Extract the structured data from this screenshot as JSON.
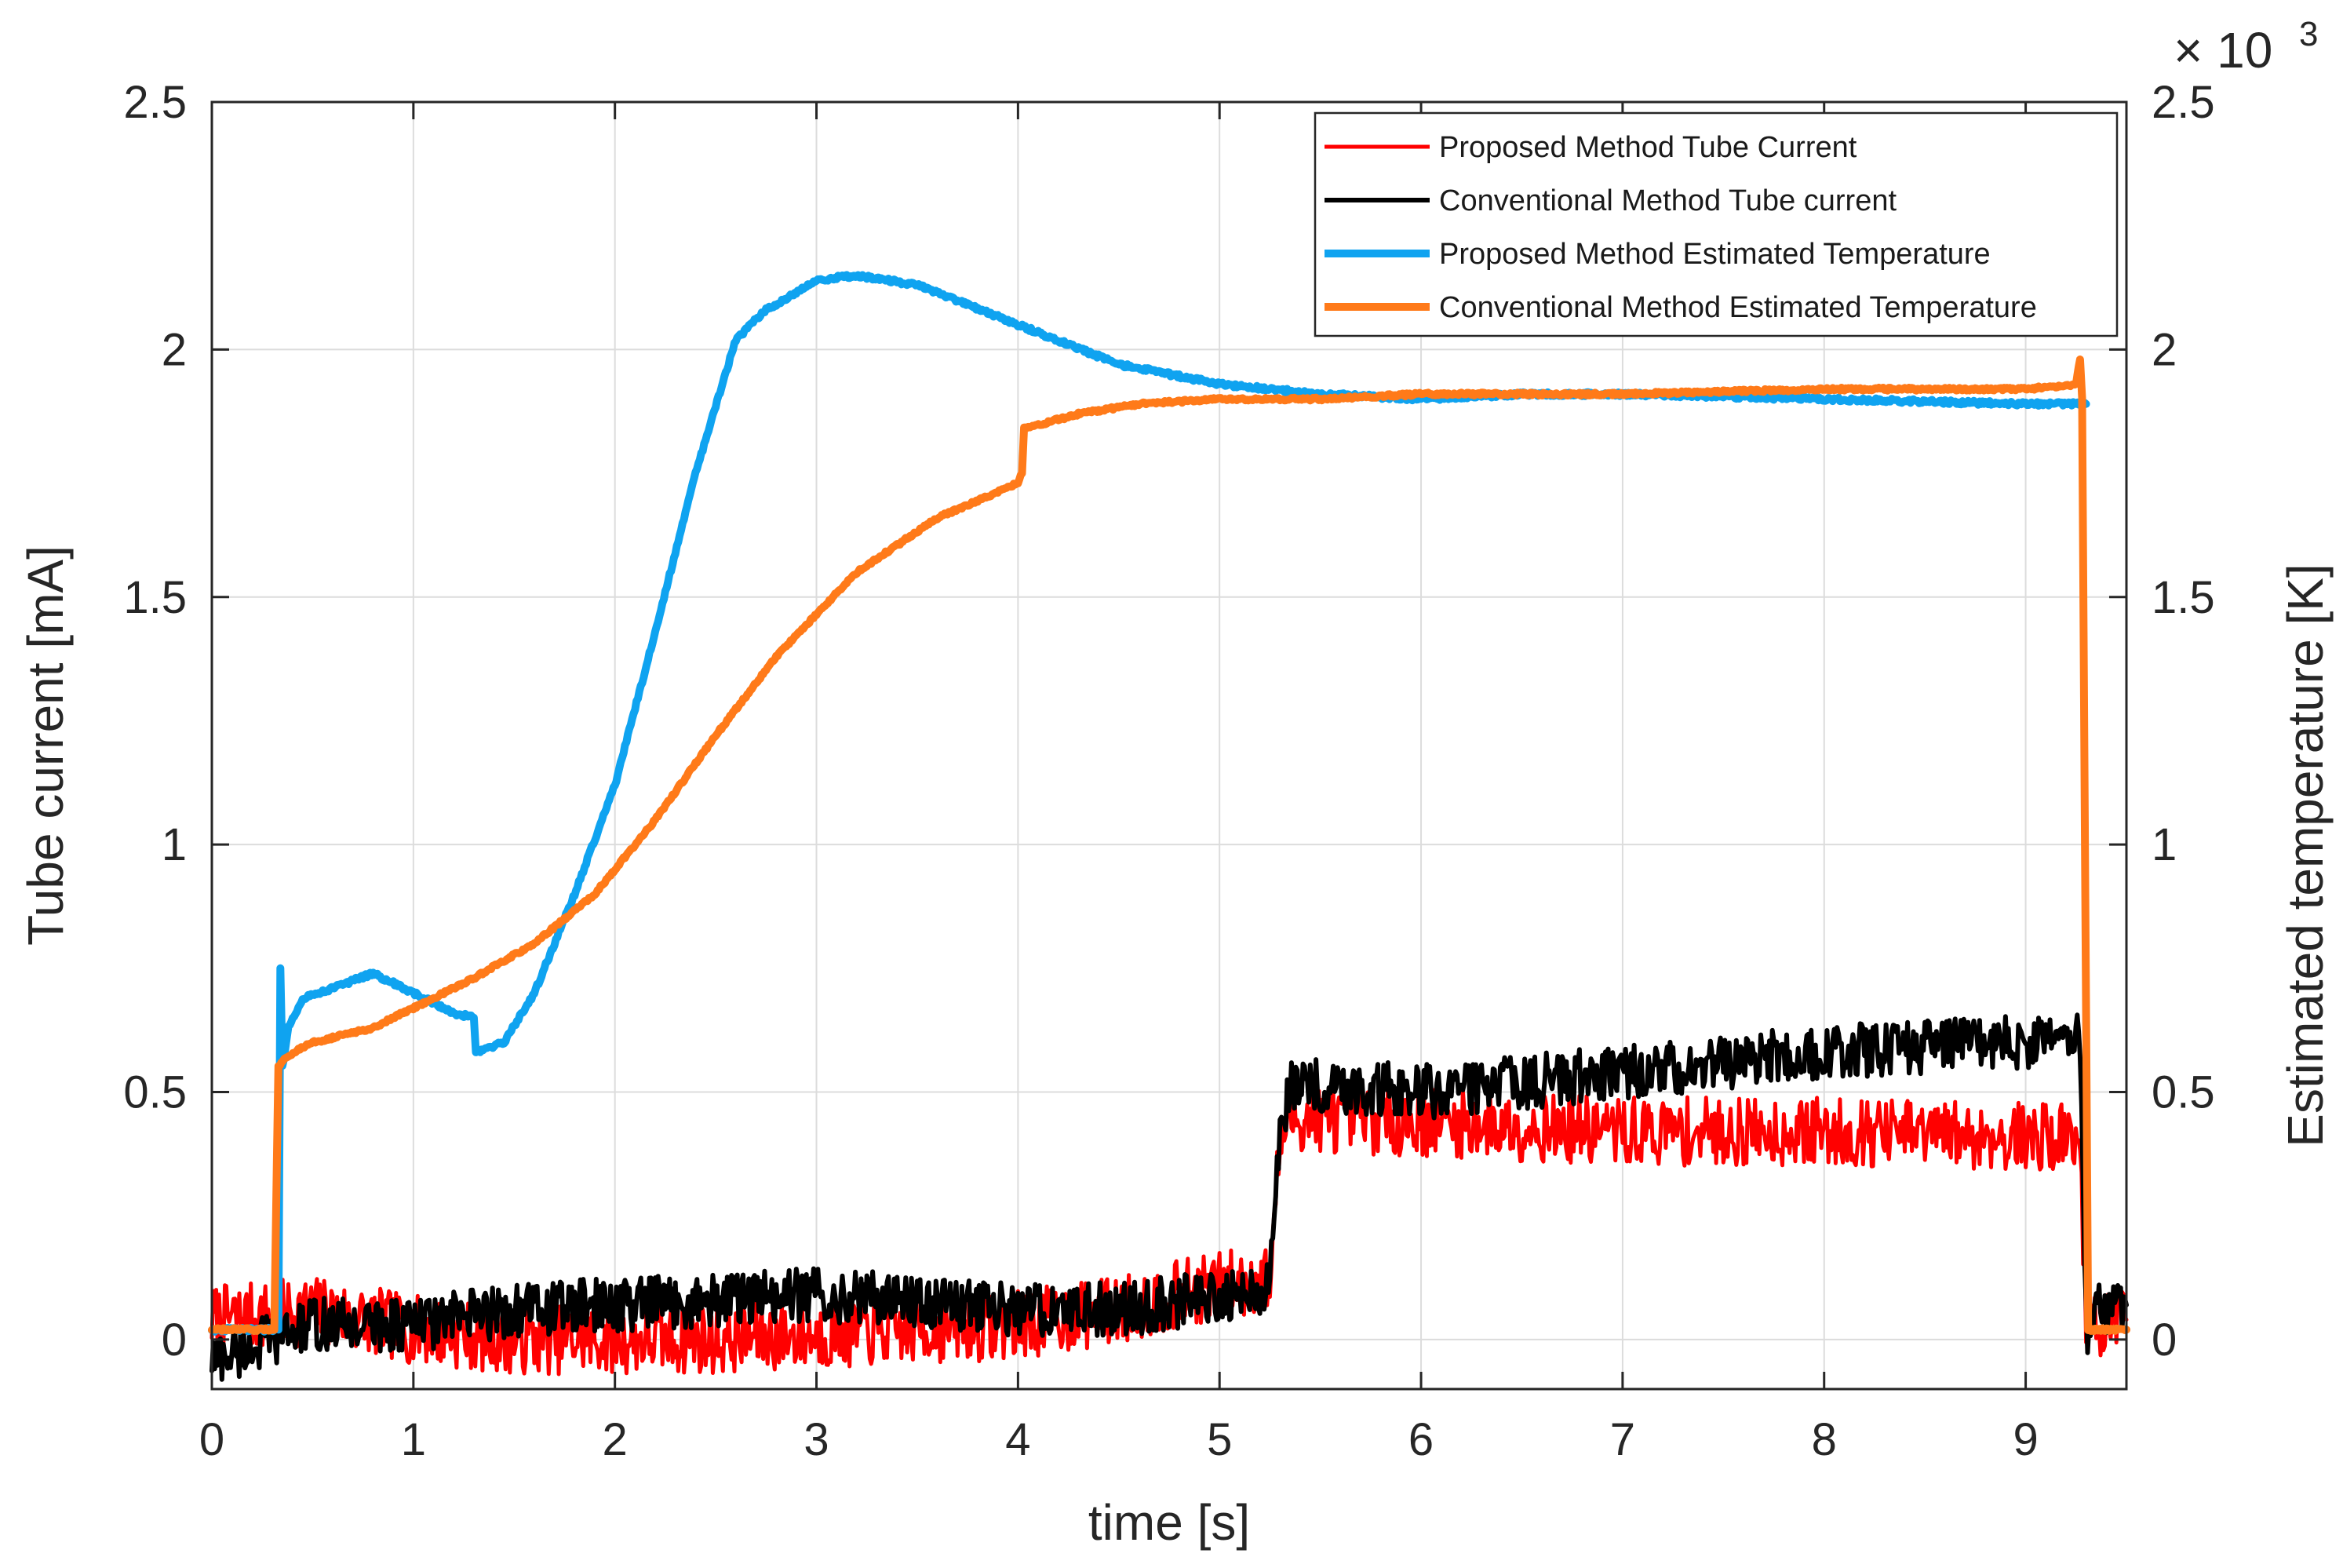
{
  "chart_data": {
    "type": "line",
    "xlabel": "time [s]",
    "ylabel_left": "Tube current [mA]",
    "ylabel_right": "Estimated temperature [K]",
    "right_axis_multiplier": "× 10",
    "right_axis_exponent": "3",
    "xlim": [
      0,
      9.5
    ],
    "ylim_left": [
      -0.1,
      2.5
    ],
    "ylim_right": [
      -0.1,
      2.5
    ],
    "x_ticks": [
      "0",
      "1",
      "2",
      "3",
      "4",
      "5",
      "6",
      "7",
      "8",
      "9"
    ],
    "y_ticks_left": [
      "0",
      "0.5",
      "1",
      "1.5",
      "2",
      "2.5"
    ],
    "y_ticks_right": [
      "0",
      "0.5",
      "1",
      "1.5",
      "2",
      "2.5"
    ],
    "grid": true,
    "legend_position": "top-right",
    "series": [
      {
        "name": "Proposed Method Tube Current",
        "color": "#ff0000",
        "axis": "left",
        "noise": 0.07,
        "x": [
          0,
          0.33,
          0.5,
          1.0,
          1.5,
          2.0,
          2.5,
          3.0,
          3.5,
          4.0,
          4.5,
          5.0,
          5.25,
          5.3,
          5.35,
          6.0,
          7.0,
          8.0,
          9.0,
          9.27,
          9.3,
          9.35,
          9.5
        ],
        "y": [
          0.04,
          0.05,
          0.06,
          0.02,
          0.0,
          0.0,
          0.0,
          0.01,
          0.02,
          0.03,
          0.06,
          0.11,
          0.12,
          0.4,
          0.45,
          0.44,
          0.42,
          0.42,
          0.41,
          0.41,
          0.02,
          0.03,
          0.04
        ]
      },
      {
        "name": "Conventional Method Tube current",
        "color": "#000000",
        "axis": "left",
        "noise": 0.055,
        "x": [
          0,
          0.3,
          0.5,
          1.0,
          1.5,
          2.0,
          2.5,
          3.0,
          3.5,
          4.0,
          4.5,
          5.0,
          5.25,
          5.3,
          5.35,
          6.0,
          7.0,
          8.0,
          9.0,
          9.27,
          9.3,
          9.35,
          9.5
        ],
        "y": [
          -0.04,
          0.0,
          0.03,
          0.03,
          0.06,
          0.07,
          0.08,
          0.09,
          0.08,
          0.06,
          0.06,
          0.09,
          0.1,
          0.42,
          0.52,
          0.5,
          0.54,
          0.58,
          0.6,
          0.61,
          0.02,
          0.06,
          0.07
        ]
      },
      {
        "name": "Proposed Method Estimated Temperature",
        "color": "#0fa3f0",
        "axis": "right",
        "noise": 0.004,
        "x": [
          0,
          0.31,
          0.33,
          0.34,
          0.35,
          0.38,
          0.45,
          0.6,
          0.8,
          1.0,
          1.2,
          1.3,
          1.31,
          1.45,
          1.6,
          1.8,
          2.0,
          2.2,
          2.4,
          2.6,
          2.75,
          3.0,
          3.2,
          3.5,
          4.0,
          4.5,
          5.0,
          5.5,
          6.0,
          6.5,
          7.0,
          8.0,
          9.0,
          9.3
        ],
        "y": [
          0.02,
          0.02,
          0.02,
          0.75,
          0.55,
          0.63,
          0.69,
          0.71,
          0.74,
          0.7,
          0.66,
          0.65,
          0.58,
          0.6,
          0.7,
          0.9,
          1.12,
          1.43,
          1.75,
          2.02,
          2.08,
          2.14,
          2.15,
          2.13,
          2.05,
          1.97,
          1.93,
          1.91,
          1.9,
          1.91,
          1.91,
          1.9,
          1.89,
          1.89
        ]
      },
      {
        "name": "Conventional Method Estimated Temperature",
        "color": "#ff7a19",
        "axis": "right",
        "noise": 0.003,
        "x": [
          0,
          0.31,
          0.33,
          0.36,
          0.5,
          0.8,
          1.0,
          1.3,
          1.6,
          1.9,
          2.2,
          2.5,
          2.8,
          3.2,
          3.6,
          4.0,
          4.02,
          4.03,
          4.3,
          4.6,
          5.0,
          5.5,
          6.0,
          7.0,
          8.0,
          9.0,
          9.25,
          9.27,
          9.28,
          9.31,
          9.5
        ],
        "y": [
          0.02,
          0.02,
          0.55,
          0.57,
          0.6,
          0.63,
          0.67,
          0.73,
          0.8,
          0.9,
          1.05,
          1.22,
          1.38,
          1.55,
          1.66,
          1.73,
          1.75,
          1.84,
          1.87,
          1.89,
          1.9,
          1.9,
          1.91,
          1.91,
          1.92,
          1.92,
          1.93,
          1.98,
          1.9,
          0.02,
          0.02
        ]
      }
    ]
  }
}
